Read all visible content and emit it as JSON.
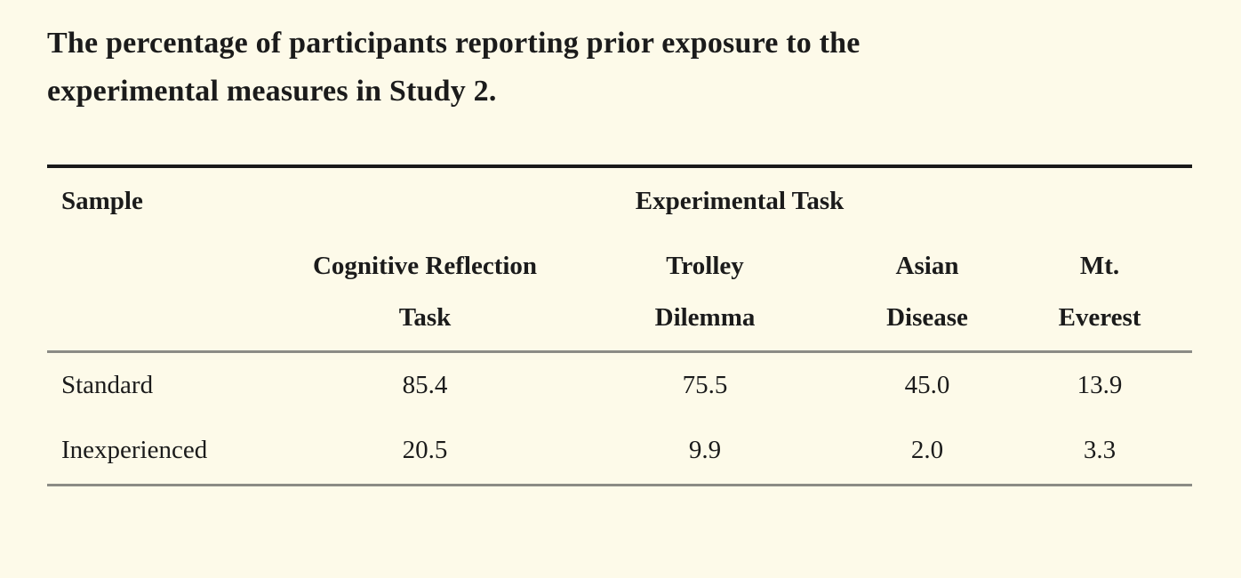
{
  "page": {
    "background_color": "#FDFAE9",
    "text_color": "#1B1B1B",
    "top_rule_color": "#191919",
    "inner_rule_color": "#8B8B85"
  },
  "caption": {
    "line1": "The percentage of participants reporting prior exposure to the",
    "line2": "experimental measures in Study 2."
  },
  "table": {
    "stub_header": "Sample",
    "group_header": "Experimental Task",
    "columns": [
      {
        "line1": "Cognitive Reflection",
        "line2": "Task"
      },
      {
        "line1": "Trolley",
        "line2": "Dilemma"
      },
      {
        "line1": "Asian",
        "line2": "Disease"
      },
      {
        "line1": "Mt.",
        "line2": "Everest"
      }
    ],
    "rows": [
      {
        "label": "Standard",
        "values": [
          "85.4",
          "75.5",
          "45.0",
          "13.9"
        ]
      },
      {
        "label": "Inexperienced",
        "values": [
          "20.5",
          "9.9",
          "2.0",
          "3.3"
        ]
      }
    ]
  }
}
